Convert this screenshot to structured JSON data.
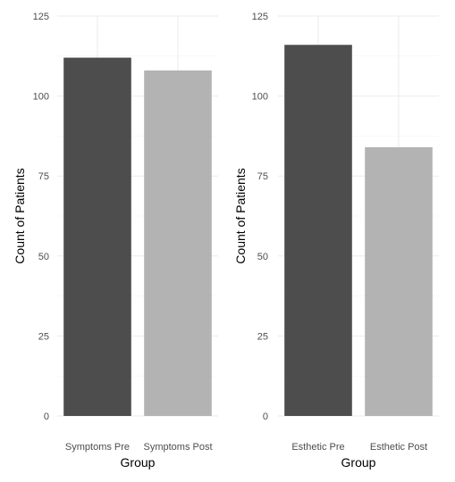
{
  "chart_data": [
    {
      "type": "bar",
      "categories": [
        "Symptoms Pre",
        "Symptoms Post"
      ],
      "values": [
        112,
        108
      ],
      "bar_colors": [
        "#4d4d4d",
        "#b3b3b3"
      ],
      "xlabel": "Group",
      "ylabel": "Count of Patients",
      "ylim": [
        0,
        125
      ],
      "y_ticks": [
        0,
        25,
        50,
        75,
        100,
        125
      ],
      "grid": true
    },
    {
      "type": "bar",
      "categories": [
        "Esthetic Pre",
        "Esthetic Post"
      ],
      "values": [
        116,
        84
      ],
      "bar_colors": [
        "#4d4d4d",
        "#b3b3b3"
      ],
      "xlabel": "Group",
      "ylabel": "Count of Patients",
      "ylim": [
        0,
        125
      ],
      "y_ticks": [
        0,
        25,
        50,
        75,
        100,
        125
      ],
      "grid": true
    }
  ]
}
